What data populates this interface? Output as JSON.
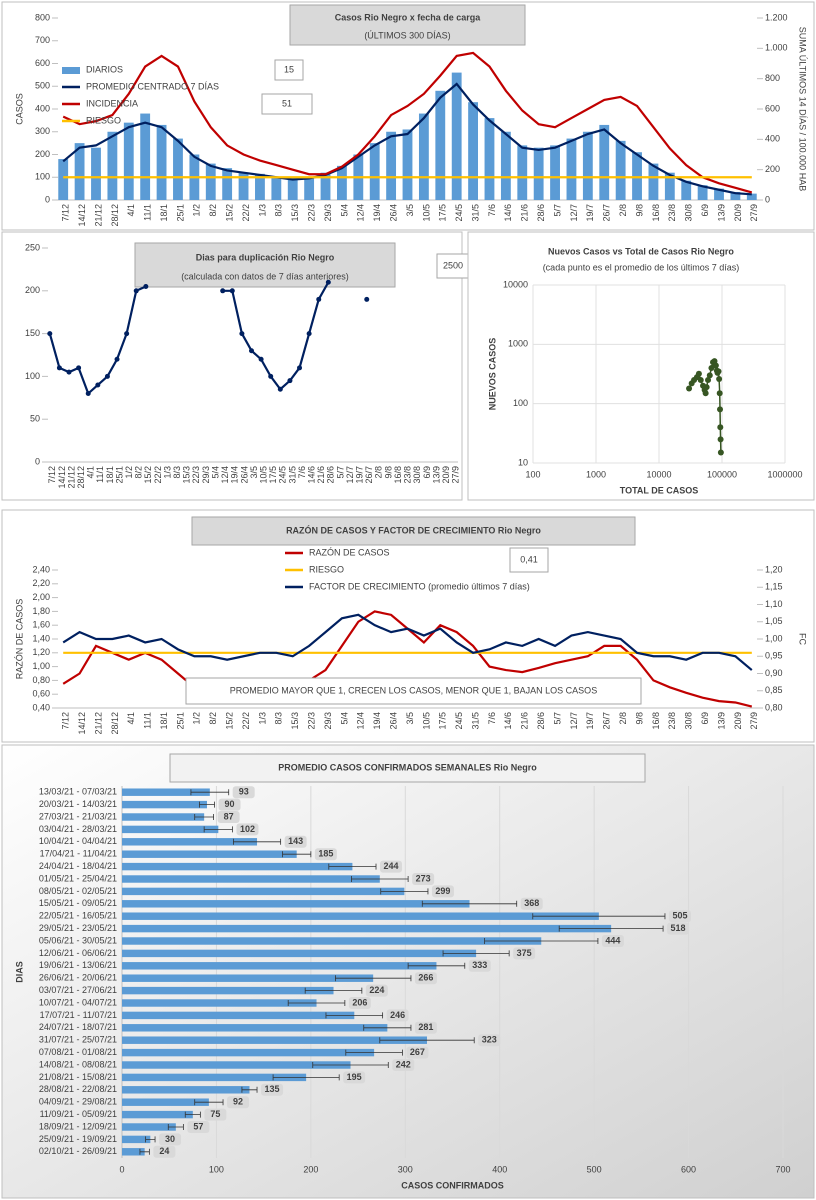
{
  "chart_data": [
    {
      "type": "bar",
      "title": "Casos Rio Negro x fecha de carga",
      "subtitle": "(ÚLTIMOS 300 DÍAS)",
      "y_label": "CASOS",
      "y2_label": "SUMA ÚLTIMOS 14 DÍAS / 100.000 HAB",
      "categories": [
        "7/12",
        "14/12",
        "21/12",
        "28/12",
        "4/1",
        "11/1",
        "18/1",
        "25/1",
        "1/2",
        "8/2",
        "15/2",
        "22/2",
        "1/3",
        "8/3",
        "15/3",
        "22/3",
        "29/3",
        "5/4",
        "12/4",
        "19/4",
        "26/4",
        "3/5",
        "10/5",
        "17/5",
        "24/5",
        "31/5",
        "7/6",
        "14/6",
        "21/6",
        "28/6",
        "5/7",
        "12/7",
        "19/7",
        "26/7",
        "2/8",
        "9/8",
        "16/8",
        "23/8",
        "30/8",
        "6/9",
        "13/9",
        "20/9",
        "27/9"
      ],
      "series": [
        {
          "name": "DIARIOS",
          "type": "bar",
          "color": "#5b9bd5",
          "values": [
            180,
            250,
            230,
            300,
            340,
            380,
            330,
            270,
            200,
            160,
            140,
            120,
            115,
            100,
            95,
            100,
            120,
            150,
            200,
            250,
            300,
            310,
            380,
            480,
            560,
            430,
            360,
            300,
            240,
            230,
            240,
            270,
            300,
            330,
            260,
            210,
            160,
            120,
            85,
            65,
            50,
            35,
            28
          ]
        },
        {
          "name": "PROMEDIO CENTRADO 7 DÍAS",
          "type": "line",
          "color": "#002060",
          "values": [
            170,
            230,
            240,
            280,
            320,
            340,
            320,
            260,
            190,
            150,
            130,
            120,
            110,
            100,
            90,
            95,
            110,
            140,
            190,
            240,
            280,
            290,
            360,
            450,
            510,
            420,
            350,
            290,
            230,
            220,
            230,
            260,
            290,
            310,
            250,
            200,
            150,
            110,
            80,
            60,
            45,
            30,
            25
          ]
        },
        {
          "name": "INCIDENCIA",
          "type": "line",
          "axis": "y2",
          "color": "#c00000",
          "values": [
            550,
            500,
            520,
            560,
            700,
            880,
            950,
            880,
            650,
            480,
            360,
            300,
            260,
            230,
            200,
            170,
            170,
            220,
            300,
            420,
            560,
            620,
            700,
            820,
            950,
            970,
            880,
            720,
            590,
            500,
            480,
            540,
            600,
            660,
            680,
            620,
            480,
            340,
            230,
            150,
            110,
            80,
            50
          ]
        },
        {
          "name": "RIESGO",
          "type": "line",
          "axis": "y2",
          "color": "#ffc000",
          "values": [
            150,
            150,
            150,
            150,
            150,
            150,
            150,
            150,
            150,
            150,
            150,
            150,
            150,
            150,
            150,
            150,
            150,
            150,
            150,
            150,
            150,
            150,
            150,
            150,
            150,
            150,
            150,
            150,
            150,
            150,
            150,
            150,
            150,
            150,
            150,
            150,
            150,
            150,
            150,
            150,
            150,
            150,
            150
          ]
        }
      ],
      "ylim": [
        0,
        800
      ],
      "yticks": [
        0,
        100,
        200,
        300,
        400,
        500,
        600,
        700,
        800
      ],
      "y2lim": [
        0,
        1200
      ],
      "y2ticks": [
        0,
        200,
        400,
        600,
        800,
        {
          "value": 1000,
          "label": "1.000"
        },
        {
          "value": 1200,
          "label": "1.200"
        }
      ],
      "legend": "upper left",
      "annotations": [
        "15",
        "51"
      ]
    },
    {
      "type": "line",
      "title": "Dias para duplicación Rio Negro",
      "subtitle": "(calculada con datos de 7 días anteriores)",
      "categories": [
        "7/12",
        "14/12",
        "21/12",
        "28/12",
        "4/1",
        "11/1",
        "18/1",
        "25/1",
        "1/2",
        "8/2",
        "15/2",
        "22/2",
        "1/3",
        "8/3",
        "15/3",
        "22/3",
        "29/3",
        "5/4",
        "12/4",
        "19/4",
        "26/4",
        "3/5",
        "10/5",
        "17/5",
        "24/5",
        "31/5",
        "7/6",
        "14/6",
        "21/6",
        "28/6",
        "5/7",
        "12/7",
        "19/7",
        "26/7",
        "2/8",
        "9/8",
        "16/8",
        "23/8",
        "30/8",
        "6/9",
        "13/9",
        "20/9",
        "27/9"
      ],
      "values": [
        150,
        110,
        105,
        110,
        80,
        90,
        100,
        120,
        150,
        200,
        205,
        null,
        null,
        null,
        null,
        null,
        null,
        null,
        200,
        200,
        150,
        130,
        120,
        100,
        85,
        95,
        110,
        150,
        190,
        210,
        null,
        null,
        null,
        190,
        null,
        null,
        null,
        null,
        null,
        null,
        null,
        null,
        null
      ],
      "color": "#002060",
      "markers": true,
      "ylim": [
        0,
        250
      ],
      "yticks": [
        0,
        50,
        100,
        150,
        200,
        250
      ],
      "annotations": [
        "2500"
      ]
    },
    {
      "type": "scatter",
      "title": "Nuevos Casos vs Total de Casos Rio Negro",
      "subtitle": "(cada punto es el promedio de los últimos 7 días)",
      "x_label": "TOTAL DE CASOS",
      "y_label": "NUEVOS CASOS",
      "color": "#375623",
      "x": [
        30000,
        33000,
        36000,
        40000,
        43000,
        46000,
        50000,
        53000,
        55000,
        57000,
        60000,
        64000,
        68000,
        72000,
        76000,
        80000,
        83000,
        85000,
        88000,
        90000,
        92000,
        93000,
        94000,
        95000,
        96000
      ],
      "values": [
        180,
        220,
        250,
        280,
        320,
        250,
        200,
        170,
        150,
        190,
        250,
        300,
        400,
        500,
        520,
        440,
        360,
        330,
        350,
        260,
        150,
        80,
        40,
        25,
        15
      ],
      "xscale": "log",
      "yscale": "log",
      "xlim": [
        100,
        1000000
      ],
      "xticks": [
        100,
        1000,
        10000,
        100000,
        1000000
      ],
      "ylim": [
        10,
        10000
      ],
      "yticks": [
        10,
        100,
        1000,
        10000
      ],
      "grid": true
    },
    {
      "type": "line",
      "title": "RAZÓN DE CASOS Y FACTOR DE CRECIMIENTO Rio Negro",
      "y_label": "RAZÓN DE CASOS",
      "y2_label": "FC",
      "categories": [
        "7/12",
        "14/12",
        "21/12",
        "28/12",
        "4/1",
        "11/1",
        "18/1",
        "25/1",
        "1/2",
        "8/2",
        "15/2",
        "22/2",
        "1/3",
        "8/3",
        "15/3",
        "22/3",
        "29/3",
        "5/4",
        "12/4",
        "19/4",
        "26/4",
        "3/5",
        "10/5",
        "17/5",
        "24/5",
        "31/5",
        "7/6",
        "14/6",
        "21/6",
        "28/6",
        "5/7",
        "12/7",
        "19/7",
        "26/7",
        "2/8",
        "9/8",
        "16/8",
        "23/8",
        "30/8",
        "6/9",
        "13/9",
        "20/9",
        "27/9"
      ],
      "series": [
        {
          "name": "RAZÓN DE CASOS",
          "type": "line",
          "color": "#c00000",
          "values": [
            0.75,
            0.9,
            1.3,
            1.2,
            1.1,
            1.2,
            1.1,
            0.9,
            0.7,
            0.65,
            0.6,
            0.62,
            0.7,
            0.72,
            0.72,
            0.8,
            0.95,
            1.3,
            1.65,
            1.8,
            1.75,
            1.55,
            1.35,
            1.6,
            1.5,
            1.3,
            1.0,
            0.95,
            0.92,
            0.98,
            1.05,
            1.1,
            1.15,
            1.3,
            1.3,
            1.1,
            0.8,
            0.7,
            0.62,
            0.55,
            0.5,
            0.48,
            0.42
          ]
        },
        {
          "name": "RIESGO",
          "type": "line",
          "color": "#ffc000",
          "values": [
            1.2,
            1.2,
            1.2,
            1.2,
            1.2,
            1.2,
            1.2,
            1.2,
            1.2,
            1.2,
            1.2,
            1.2,
            1.2,
            1.2,
            1.2,
            1.2,
            1.2,
            1.2,
            1.2,
            1.2,
            1.2,
            1.2,
            1.2,
            1.2,
            1.2,
            1.2,
            1.2,
            1.2,
            1.2,
            1.2,
            1.2,
            1.2,
            1.2,
            1.2,
            1.2,
            1.2,
            1.2,
            1.2,
            1.2,
            1.2,
            1.2,
            1.2,
            1.2
          ]
        },
        {
          "name": "FACTOR DE CRECIMIENTO (promedio últimos 7 días)",
          "type": "line",
          "axis": "y2",
          "color": "#002060",
          "values": [
            0.99,
            1.02,
            1.0,
            1.0,
            1.01,
            0.99,
            1.0,
            0.97,
            0.95,
            0.95,
            0.94,
            0.95,
            0.96,
            0.96,
            0.95,
            0.98,
            1.02,
            1.06,
            1.07,
            1.04,
            1.02,
            1.03,
            1.01,
            1.03,
            0.99,
            0.96,
            0.97,
            0.99,
            0.98,
            1.0,
            0.98,
            1.01,
            1.02,
            1.01,
            1.0,
            0.96,
            0.95,
            0.95,
            0.94,
            0.96,
            0.96,
            0.95,
            0.91
          ]
        }
      ],
      "ylim": [
        0.4,
        2.4
      ],
      "yticks": [
        {
          "value": 0.4,
          "label": "0,40"
        },
        {
          "value": 0.6,
          "label": "0,60"
        },
        {
          "value": 0.8,
          "label": "0,80"
        },
        {
          "value": 1.0,
          "label": "1,00"
        },
        {
          "value": 1.2,
          "label": "1,20"
        },
        {
          "value": 1.4,
          "label": "1,40"
        },
        {
          "value": 1.6,
          "label": "1,60"
        },
        {
          "value": 1.8,
          "label": "1,80"
        },
        {
          "value": 2.0,
          "label": "2,00"
        },
        {
          "value": 2.2,
          "label": "2,20"
        },
        {
          "value": 2.4,
          "label": "2,40"
        }
      ],
      "y2lim": [
        0.8,
        1.2
      ],
      "y2ticks": [
        {
          "value": 0.8,
          "label": "0,80"
        },
        {
          "value": 0.85,
          "label": "0,85"
        },
        {
          "value": 0.9,
          "label": "0,90"
        },
        {
          "value": 0.95,
          "label": "0,95"
        },
        {
          "value": 1.0,
          "label": "1,00"
        },
        {
          "value": 1.05,
          "label": "1,05"
        },
        {
          "value": 1.1,
          "label": "1,10"
        },
        {
          "value": 1.15,
          "label": "1,15"
        },
        {
          "value": 1.2,
          "label": "1,20"
        }
      ],
      "legend": "upper center",
      "annotations": [
        "0,41",
        "PROMEDIO MAYOR QUE 1, CRECEN LOS CASOS, MENOR QUE 1, BAJAN LOS CASOS"
      ]
    },
    {
      "type": "bar",
      "orientation": "horizontal",
      "title": "PROMEDIO CASOS CONFIRMADOS SEMANALES Rio Negro",
      "x_label": "CASOS CONFIRMADOS",
      "y_label": "DIAS",
      "categories": [
        "13/03/21 - 07/03/21",
        "20/03/21 - 14/03/21",
        "27/03/21 - 21/03/21",
        "03/04/21 - 28/03/21",
        "10/04/21 - 04/04/21",
        "17/04/21 - 11/04/21",
        "24/04/21 - 18/04/21",
        "01/05/21 - 25/04/21",
        "08/05/21 - 02/05/21",
        "15/05/21 - 09/05/21",
        "22/05/21 - 16/05/21",
        "29/05/21 - 23/05/21",
        "05/06/21 - 30/05/21",
        "12/06/21 - 06/06/21",
        "19/06/21 - 13/06/21",
        "26/06/21 - 20/06/21",
        "03/07/21 - 27/06/21",
        "10/07/21 - 04/07/21",
        "17/07/21 - 11/07/21",
        "24/07/21 - 18/07/21",
        "31/07/21 - 25/07/21",
        "07/08/21 - 01/08/21",
        "14/08/21 - 08/08/21",
        "21/08/21 - 15/08/21",
        "28/08/21 - 22/08/21",
        "04/09/21 - 29/08/21",
        "11/09/21 - 05/09/21",
        "18/09/21 - 12/09/21",
        "25/09/21 - 19/09/21",
        "02/10/21 - 26/09/21"
      ],
      "values": [
        93,
        90,
        87,
        102,
        143,
        185,
        244,
        273,
        299,
        368,
        505,
        518,
        444,
        375,
        333,
        266,
        224,
        206,
        246,
        281,
        323,
        267,
        242,
        195,
        135,
        92,
        75,
        57,
        30,
        24
      ],
      "errors": [
        20,
        8,
        10,
        15,
        25,
        15,
        25,
        30,
        25,
        50,
        70,
        55,
        60,
        35,
        30,
        40,
        30,
        30,
        30,
        25,
        50,
        30,
        40,
        35,
        8,
        15,
        8,
        8,
        5,
        5
      ],
      "color": "#5b9bd5",
      "xlim": [
        0,
        700
      ],
      "xticks": [
        0,
        100,
        200,
        300,
        400,
        500,
        600,
        700
      ],
      "grid": true
    }
  ]
}
